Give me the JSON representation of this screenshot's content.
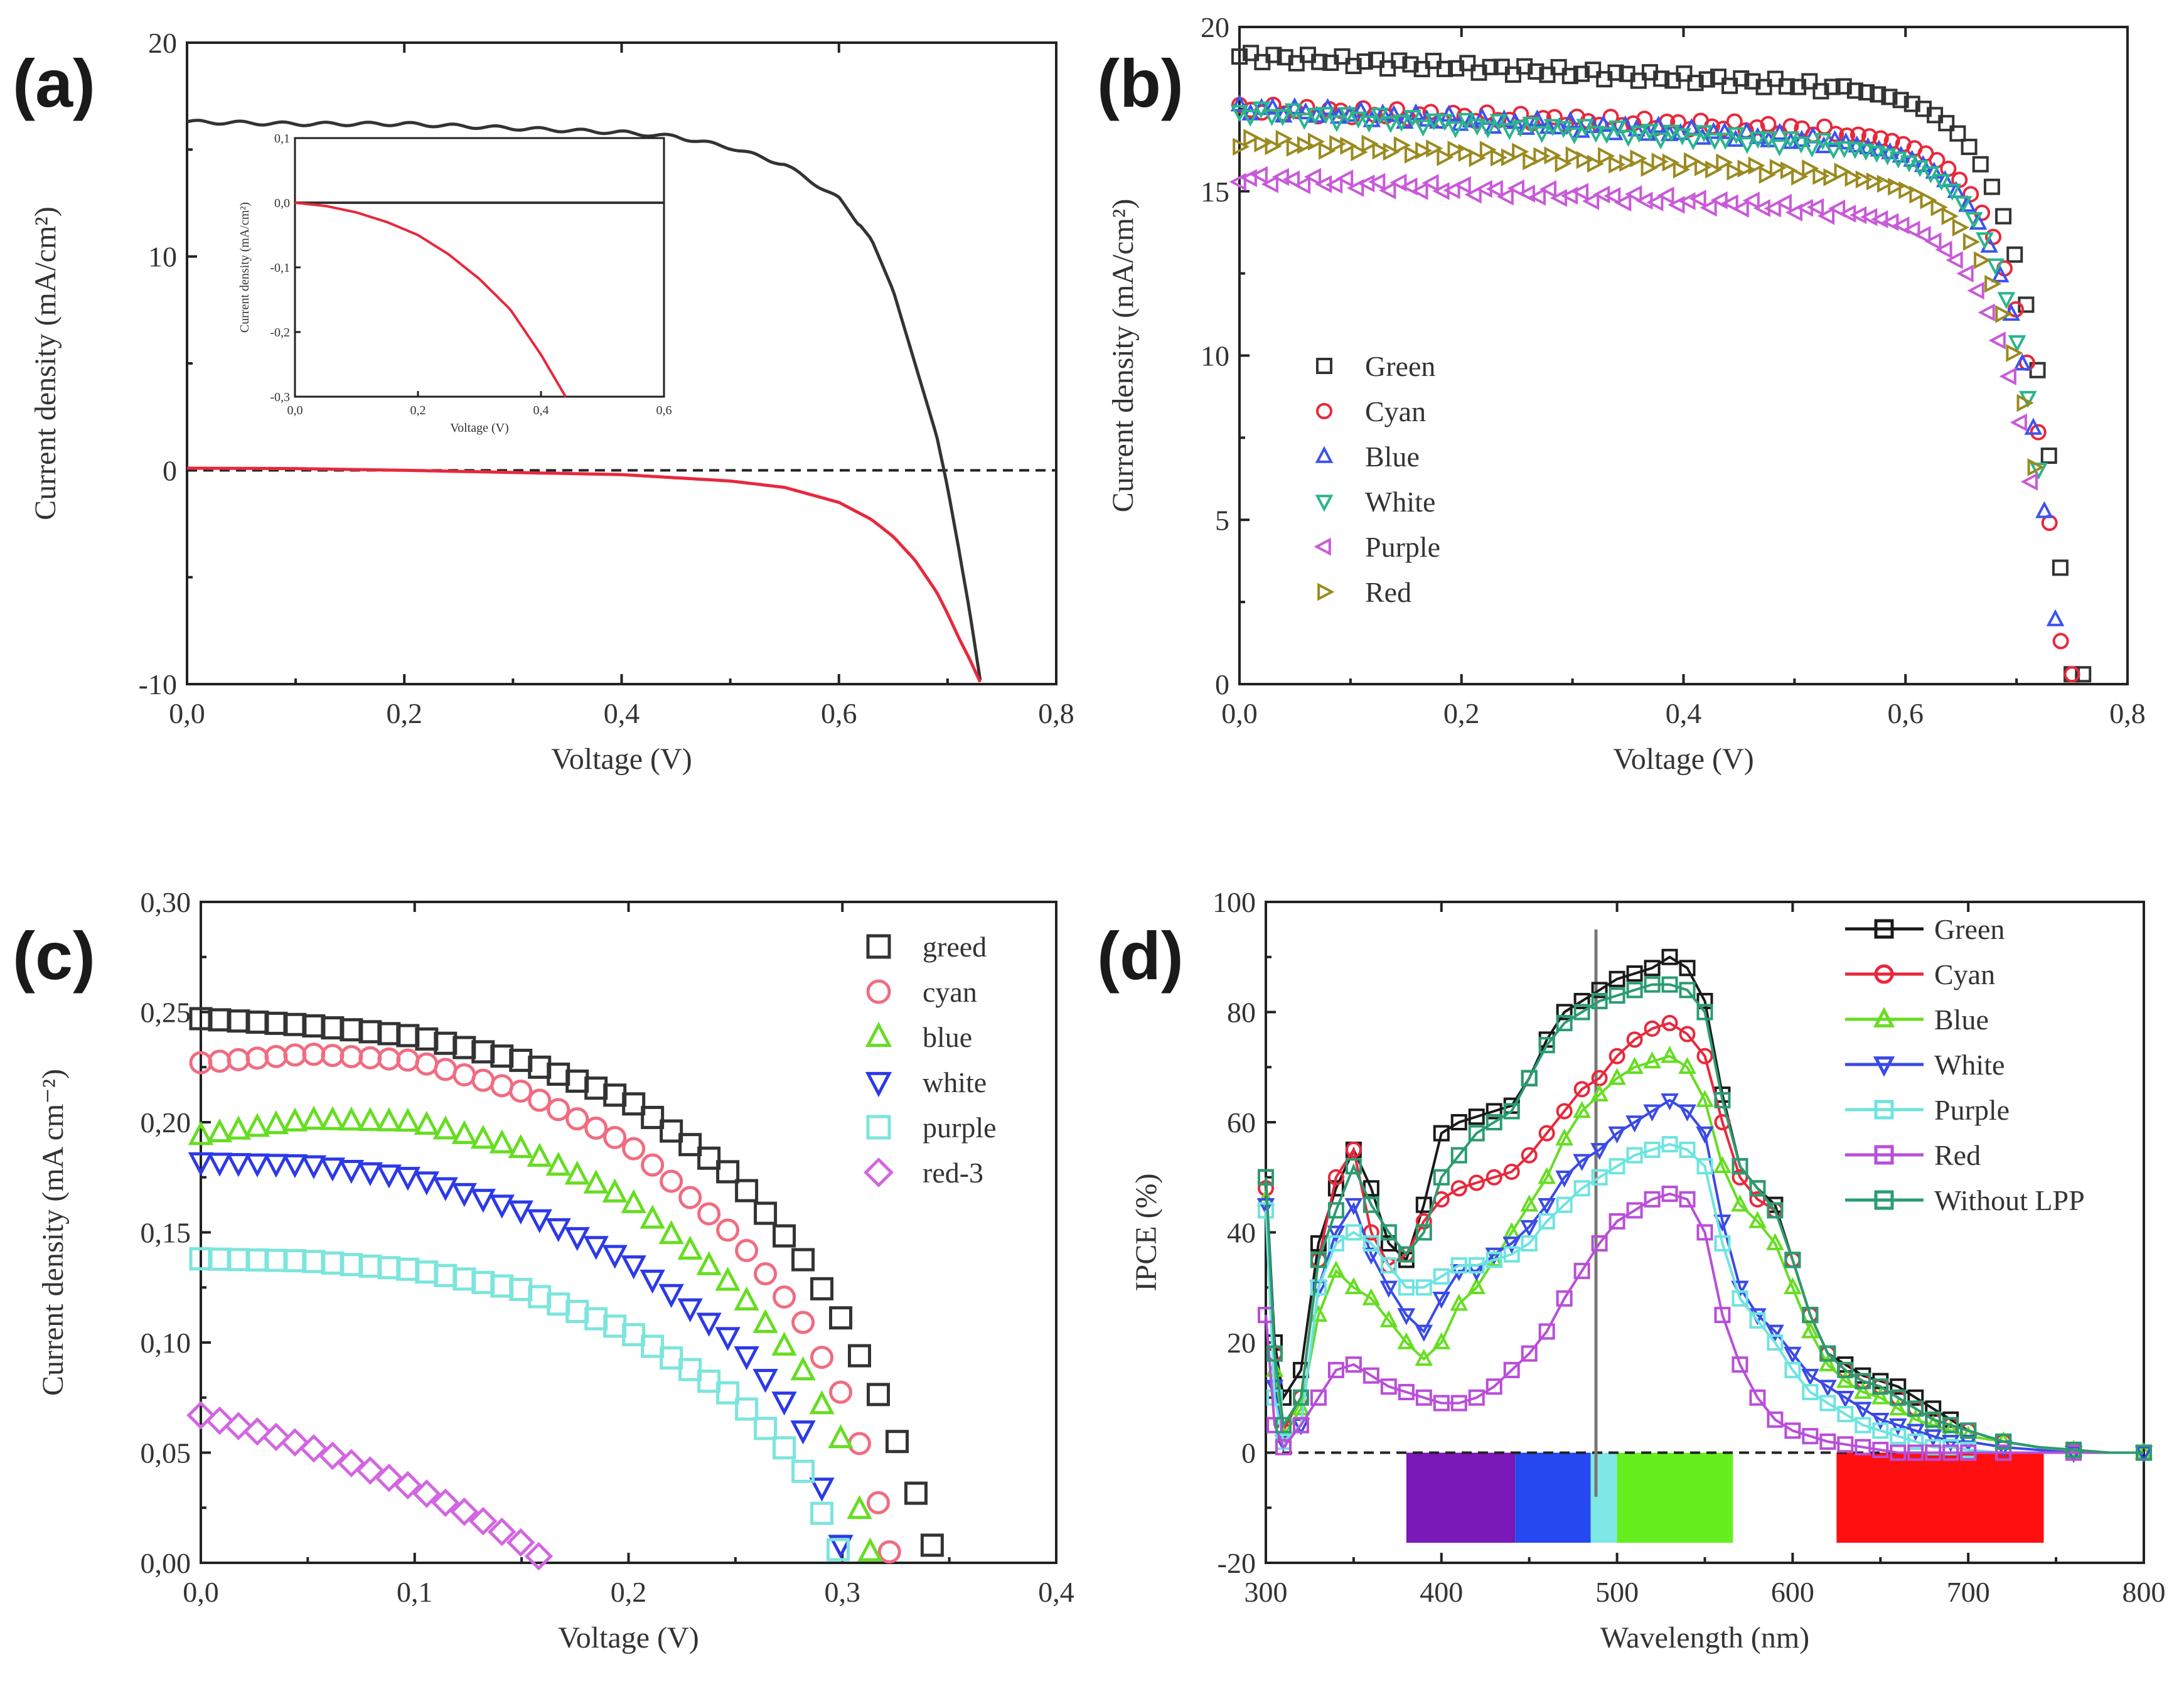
{
  "chart_data": [
    {
      "panel": "(a)",
      "type": "line",
      "xlabel": "Voltage (V)",
      "ylabel": "Current density (mA/cm²)",
      "xlim": [
        0,
        0.8
      ],
      "ylim": [
        -10,
        20
      ],
      "xticks": [
        "0,0",
        "0,2",
        "0,4",
        "0,6",
        "0,8"
      ],
      "yticks": [
        "-10",
        "0",
        "10",
        "20"
      ],
      "series": [
        {
          "name": "black",
          "color": "#333333",
          "x": [
            0,
            0.1,
            0.2,
            0.3,
            0.4,
            0.45,
            0.5,
            0.55,
            0.6,
            0.63,
            0.65,
            0.67,
            0.69,
            0.7,
            0.71,
            0.72,
            0.73
          ],
          "y": [
            16.3,
            16.2,
            16.2,
            16.0,
            15.8,
            15.6,
            15.1,
            14.3,
            12.7,
            10.8,
            8.4,
            5.0,
            1.6,
            -0.8,
            -3.6,
            -6.5,
            -9.8
          ]
        },
        {
          "name": "red",
          "color": "#e8283c",
          "x": [
            0,
            0.1,
            0.2,
            0.3,
            0.4,
            0.5,
            0.55,
            0.6,
            0.63,
            0.65,
            0.67,
            0.69,
            0.7,
            0.71,
            0.72,
            0.73
          ],
          "y": [
            0.1,
            0.08,
            0.0,
            -0.1,
            -0.2,
            -0.5,
            -0.8,
            -1.5,
            -2.3,
            -3.1,
            -4.2,
            -5.7,
            -6.7,
            -7.8,
            -8.8,
            -9.9
          ]
        }
      ],
      "reference_line": {
        "y": 0,
        "style": "dashed"
      },
      "inset": {
        "xlabel": "Voltage (V)",
        "ylabel": "Current density (mA/cm²)",
        "xticks": [
          "0,0",
          "0,2",
          "0,4",
          "0,6"
        ],
        "yticks": [
          "0,1",
          "0,0",
          "-0,1",
          "-0,2",
          "-0,3"
        ],
        "xlim": [
          0,
          0.6
        ],
        "ylim": [
          -0.3,
          0.1
        ],
        "series": [
          {
            "name": "black",
            "color": "#333333",
            "x": [
              0,
              0.6
            ],
            "y": [
              0.0,
              0.0
            ]
          },
          {
            "name": "red",
            "color": "#e8283c",
            "x": [
              0,
              0.05,
              0.1,
              0.15,
              0.2,
              0.25,
              0.3,
              0.35,
              0.4,
              0.44
            ],
            "y": [
              0.0,
              -0.005,
              -0.015,
              -0.03,
              -0.05,
              -0.08,
              -0.118,
              -0.165,
              -0.235,
              -0.3
            ]
          }
        ]
      }
    },
    {
      "panel": "(b)",
      "type": "scatter",
      "xlabel": "Voltage (V)",
      "ylabel": "Current density (mA/cm²)",
      "xlim": [
        0,
        0.8
      ],
      "ylim": [
        0,
        20
      ],
      "xticks": [
        "0,0",
        "0,2",
        "0,4",
        "0,6",
        "0,8"
      ],
      "yticks": [
        "0",
        "5",
        "10",
        "15",
        "20"
      ],
      "legend_position": "center-left",
      "series": [
        {
          "name": "Green",
          "color": "#333333",
          "marker": "square",
          "jsc": 19.1,
          "slope": 1.7,
          "voc": 0.76,
          "curv": 0.034
        },
        {
          "name": "Cyan",
          "color": "#e8283c",
          "marker": "circle",
          "jsc": 17.5,
          "slope": 1.2,
          "voc": 0.75,
          "curv": 0.036
        },
        {
          "name": "Blue",
          "color": "#3a54ee",
          "marker": "triangle-up",
          "jsc": 17.5,
          "slope": 1.8,
          "voc": 0.735,
          "curv": 0.038
        },
        {
          "name": "White",
          "color": "#2ab58c",
          "marker": "triangle-down",
          "jsc": 17.4,
          "slope": 1.8,
          "voc": 0.72,
          "curv": 0.038
        },
        {
          "name": "Purple",
          "color": "#c85ad8",
          "marker": "triangle-left",
          "jsc": 15.4,
          "slope": 1.8,
          "voc": 0.713,
          "curv": 0.038
        },
        {
          "name": "Red",
          "color": "#9a8a20",
          "marker": "triangle-right",
          "jsc": 16.5,
          "slope": 1.8,
          "voc": 0.716,
          "curv": 0.038
        }
      ]
    },
    {
      "panel": "(c)",
      "type": "scatter",
      "xlabel": "Voltage (V)",
      "ylabel": "Current density (mA cm⁻²)",
      "xlim": [
        0,
        0.4
      ],
      "ylim": [
        0,
        0.3
      ],
      "xticks": [
        "0,0",
        "0,1",
        "0,2",
        "0,3",
        "0,4"
      ],
      "yticks": [
        "0,00",
        "0,05",
        "0,10",
        "0,15",
        "0,20",
        "0,25",
        "0,30"
      ],
      "legend_position": "top-right",
      "series": [
        {
          "name": "greed",
          "color": "#333333",
          "marker": "square",
          "x": [
            0,
            0.05,
            0.1,
            0.15,
            0.2,
            0.25,
            0.28,
            0.3,
            0.32,
            0.335,
            0.342
          ],
          "y": [
            0.247,
            0.244,
            0.239,
            0.228,
            0.21,
            0.175,
            0.14,
            0.11,
            0.07,
            0.03,
            0.008
          ]
        },
        {
          "name": "cyan",
          "color": "#f06c80",
          "marker": "circle",
          "x": [
            0,
            0.05,
            0.1,
            0.15,
            0.2,
            0.25,
            0.28,
            0.3,
            0.315,
            0.322
          ],
          "y": [
            0.227,
            0.231,
            0.228,
            0.214,
            0.19,
            0.148,
            0.112,
            0.076,
            0.035,
            0.005
          ]
        },
        {
          "name": "blue",
          "color": "#66dd22",
          "marker": "triangle-up",
          "x": [
            0,
            0.05,
            0.1,
            0.15,
            0.2,
            0.25,
            0.28,
            0.3,
            0.313
          ],
          "y": [
            0.194,
            0.201,
            0.2,
            0.188,
            0.165,
            0.125,
            0.09,
            0.055,
            0.005
          ]
        },
        {
          "name": "white",
          "color": "#2c39e8",
          "marker": "triangle-down",
          "x": [
            0,
            0.05,
            0.1,
            0.15,
            0.2,
            0.25,
            0.28,
            0.3
          ],
          "y": [
            0.182,
            0.181,
            0.175,
            0.16,
            0.137,
            0.1,
            0.065,
            0.006
          ]
        },
        {
          "name": "purple",
          "color": "#7ce5dc",
          "marker": "square",
          "x": [
            0,
            0.05,
            0.1,
            0.15,
            0.2,
            0.25,
            0.28,
            0.298
          ],
          "y": [
            0.138,
            0.137,
            0.133,
            0.124,
            0.105,
            0.075,
            0.045,
            0.006
          ]
        },
        {
          "name": "red-3",
          "color": "#d266e0",
          "marker": "diamond",
          "x": [
            0,
            0.05,
            0.1,
            0.13,
            0.15,
            0.158
          ],
          "y": [
            0.067,
            0.053,
            0.034,
            0.02,
            0.009,
            0.003
          ]
        }
      ]
    },
    {
      "panel": "(d)",
      "type": "line",
      "xlabel": "Wavelength (nm)",
      "ylabel": "IPCE (%)",
      "xlim": [
        300,
        800
      ],
      "ylim": [
        -20,
        100
      ],
      "xticks": [
        "300",
        "400",
        "500",
        "600",
        "700",
        "800"
      ],
      "yticks": [
        "-20",
        "0",
        "20",
        "40",
        "60",
        "80",
        "100"
      ],
      "legend_position": "top-right",
      "reference_line": {
        "y": 0,
        "style": "dashed"
      },
      "vertical_marker": {
        "x": 488,
        "y_top": 95,
        "y_bottom": -8
      },
      "color_bands": [
        {
          "x0": 380,
          "x1": 442,
          "color": "#7a18b8"
        },
        {
          "x0": 442,
          "x1": 485,
          "color": "#2648f0"
        },
        {
          "x0": 485,
          "x1": 500,
          "color": "#7ee8e6"
        },
        {
          "x0": 500,
          "x1": 566,
          "color": "#66ee1e"
        },
        {
          "x0": 625,
          "x1": 743,
          "color": "#ff0f0f"
        }
      ],
      "x": [
        300,
        305,
        310,
        320,
        330,
        340,
        350,
        360,
        370,
        380,
        390,
        400,
        410,
        420,
        430,
        440,
        450,
        460,
        470,
        480,
        490,
        500,
        510,
        520,
        530,
        540,
        550,
        560,
        570,
        580,
        590,
        600,
        610,
        620,
        630,
        640,
        650,
        660,
        670,
        680,
        690,
        700,
        720,
        740,
        760,
        780,
        800
      ],
      "series": [
        {
          "name": "Green",
          "color": "#1a1a1a",
          "marker": "square",
          "values": [
            50,
            20,
            10,
            15,
            38,
            48,
            55,
            48,
            38,
            35,
            45,
            58,
            60,
            61,
            62,
            63,
            68,
            75,
            80,
            82,
            84,
            86,
            87,
            88,
            90,
            88,
            82,
            65,
            52,
            48,
            45,
            35,
            25,
            18,
            16,
            14,
            13,
            12,
            10,
            8,
            6,
            4,
            2,
            1,
            0.5,
            0,
            0
          ]
        },
        {
          "name": "Cyan",
          "color": "#e8283c",
          "marker": "circle",
          "values": [
            48,
            18,
            4,
            10,
            35,
            50,
            55,
            40,
            34,
            36,
            42,
            46,
            48,
            49,
            50,
            51,
            54,
            58,
            62,
            66,
            68,
            72,
            75,
            77,
            78,
            76,
            72,
            60,
            50,
            46,
            44,
            35,
            25,
            18,
            15,
            13,
            12,
            10,
            8,
            6,
            5,
            4,
            2,
            1,
            0.5,
            0,
            0
          ]
        },
        {
          "name": "Blue",
          "color": "#66dd22",
          "marker": "triangle-up",
          "values": [
            46,
            15,
            3,
            8,
            25,
            33,
            30,
            28,
            24,
            20,
            17,
            20,
            27,
            30,
            35,
            40,
            45,
            50,
            57,
            62,
            65,
            68,
            70,
            71,
            72,
            70,
            64,
            52,
            45,
            42,
            38,
            30,
            22,
            16,
            13,
            11,
            10,
            8,
            6,
            5,
            4,
            3,
            2,
            1,
            0.5,
            0,
            0
          ]
        },
        {
          "name": "White",
          "color": "#3a4ae6",
          "marker": "triangle-down",
          "values": [
            45,
            12,
            2,
            5,
            30,
            40,
            45,
            36,
            30,
            25,
            22,
            28,
            33,
            33,
            36,
            38,
            41,
            45,
            50,
            53,
            55,
            58,
            60,
            62,
            64,
            62,
            58,
            42,
            30,
            25,
            22,
            18,
            14,
            12,
            10,
            8,
            6,
            5,
            4,
            3,
            2,
            2,
            1,
            0.5,
            0,
            0,
            0
          ]
        },
        {
          "name": "Purple",
          "color": "#6ee4e0",
          "marker": "square",
          "values": [
            44,
            10,
            2,
            5,
            30,
            38,
            40,
            38,
            34,
            30,
            30,
            32,
            34,
            34,
            35,
            36,
            38,
            42,
            45,
            48,
            50,
            52,
            54,
            55,
            56,
            55,
            52,
            38,
            28,
            24,
            20,
            15,
            11,
            9,
            7,
            5,
            4,
            3,
            2,
            1,
            1,
            0.5,
            0,
            0,
            0,
            0,
            0
          ]
        },
        {
          "name": "Red",
          "color": "#b94ed8",
          "marker": "square",
          "values": [
            25,
            5,
            1,
            5,
            10,
            15,
            16,
            14,
            12,
            11,
            10,
            9,
            9,
            10,
            12,
            15,
            18,
            22,
            28,
            33,
            38,
            42,
            44,
            46,
            47,
            46,
            40,
            25,
            16,
            10,
            6,
            4,
            3,
            2,
            1.5,
            1,
            0.5,
            0,
            0,
            0,
            0,
            0,
            0,
            0,
            0,
            0,
            0
          ]
        },
        {
          "name": "Without LPP",
          "color": "#2a9c70",
          "marker": "square",
          "values": [
            50,
            18,
            5,
            10,
            35,
            44,
            52,
            45,
            40,
            36,
            40,
            50,
            54,
            58,
            60,
            62,
            68,
            74,
            78,
            80,
            82,
            83,
            84,
            85,
            85,
            84,
            80,
            64,
            52,
            48,
            44,
            35,
            25,
            18,
            15,
            13,
            12,
            10,
            8,
            6,
            5,
            4,
            2,
            1,
            0.5,
            0,
            0
          ]
        }
      ]
    }
  ]
}
